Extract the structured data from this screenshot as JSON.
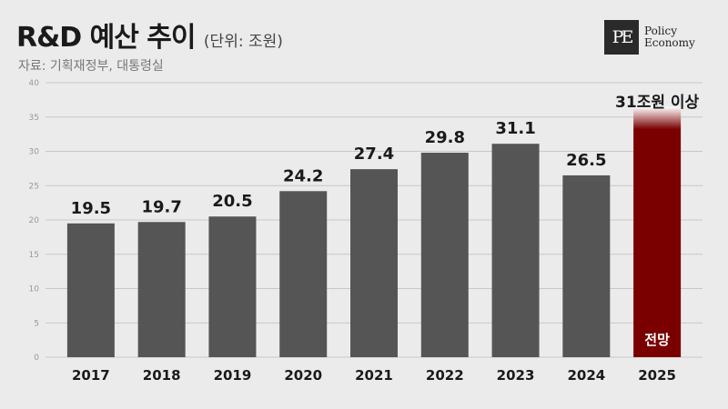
{
  "header": {
    "title": "R&D 예산 추이",
    "unit": "(단위: 조원)",
    "source": "자료: 기획재정부, 대통령실"
  },
  "logo": {
    "mark": "PE",
    "line1": "Policy",
    "line2": "Economy"
  },
  "chart_data": {
    "type": "bar",
    "categories": [
      "2017",
      "2018",
      "2019",
      "2020",
      "2021",
      "2022",
      "2023",
      "2024",
      "2025"
    ],
    "values": [
      19.5,
      19.7,
      20.5,
      24.2,
      27.4,
      29.8,
      31.1,
      26.5,
      31
    ],
    "data_labels": [
      "19.5",
      "19.7",
      "20.5",
      "24.2",
      "27.4",
      "29.8",
      "31.1",
      "26.5",
      "31조원 이상"
    ],
    "y_ticks": [
      "0",
      "5",
      "10",
      "15",
      "20",
      "25",
      "30",
      "35",
      "40"
    ],
    "ylim": [
      0,
      40
    ],
    "grid": true,
    "forecast_label": "전망",
    "colors": {
      "bar": "#555555",
      "forecast": "#7a0000",
      "grid": "#c8c8c8"
    }
  }
}
